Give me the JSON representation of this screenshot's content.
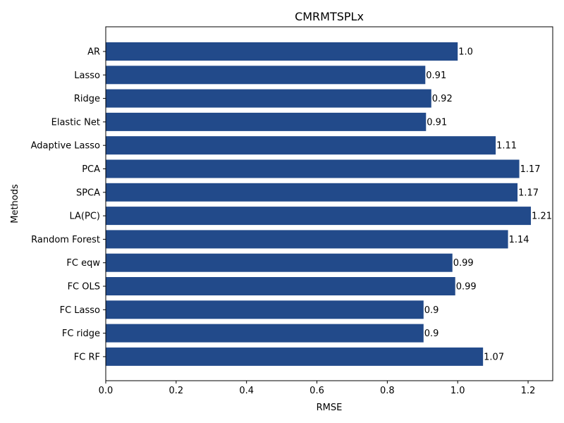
{
  "chart_data": {
    "type": "bar",
    "orientation": "horizontal",
    "title": "CMRMTSPLx",
    "xlabel": "RMSE",
    "ylabel": "Methods",
    "xlim": [
      0,
      1.27
    ],
    "x_ticks": [
      0.0,
      0.2,
      0.4,
      0.6,
      0.8,
      1.0,
      1.2
    ],
    "x_tick_labels": [
      "0.0",
      "0.2",
      "0.4",
      "0.6",
      "0.8",
      "1.0",
      "1.2"
    ],
    "grid": false,
    "bar_color": "#224a8a",
    "categories": [
      "AR",
      "Lasso",
      "Ridge",
      "Elastic Net",
      "Adaptive Lasso",
      "PCA",
      "SPCA",
      "LA(PC)",
      "Random Forest",
      "FC eqw",
      "FC OLS",
      "FC Lasso",
      "FC ridge",
      "FC RF"
    ],
    "values": [
      1.0,
      0.908,
      0.925,
      0.91,
      1.108,
      1.175,
      1.17,
      1.208,
      1.143,
      0.985,
      0.993,
      0.903,
      0.903,
      1.072
    ],
    "data_labels": [
      "1.0",
      "0.91",
      "0.92",
      "0.91",
      "1.11",
      "1.17",
      "1.17",
      "1.21",
      "1.14",
      "0.99",
      "0.99",
      "0.9",
      "0.9",
      "1.07"
    ]
  }
}
